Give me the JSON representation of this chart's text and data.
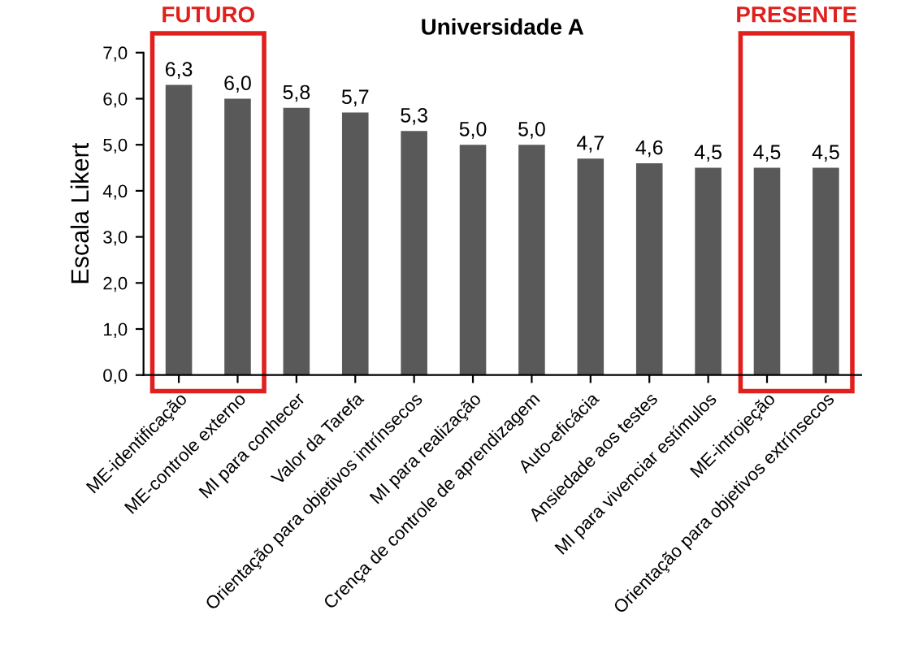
{
  "chart_data": {
    "type": "bar",
    "title": "Universidade A",
    "ylabel": "Escala Likert",
    "categories": [
      "ME-identificação",
      "ME-controle externo",
      "MI para conhecer",
      "Valor da Tarefa",
      "Orientação para objetivos intrínsecos",
      "MI para realização",
      "Crença de controle de aprendizagem",
      "Auto-eficácia",
      "Ansiedade aos testes",
      "MI para vivenciar estímulos",
      "ME-introjeção",
      "Orientação para objetivos extrínsecos"
    ],
    "values": [
      6.3,
      6.0,
      5.8,
      5.7,
      5.3,
      5.0,
      5.0,
      4.7,
      4.6,
      4.5,
      4.5,
      4.5
    ],
    "value_labels": [
      "6,3",
      "6,0",
      "5,8",
      "5,7",
      "5,3",
      "5,0",
      "5,0",
      "4,7",
      "4,6",
      "4,5",
      "4,5",
      "4,5"
    ],
    "color": "#595959",
    "ylim": [
      0,
      7
    ],
    "yticks": [
      {
        "value": 0,
        "label": "0,0"
      },
      {
        "value": 1,
        "label": "1,0"
      },
      {
        "value": 2,
        "label": "2,0"
      },
      {
        "value": 3,
        "label": "3,0"
      },
      {
        "value": 4,
        "label": "4,0"
      },
      {
        "value": 5,
        "label": "5,0"
      },
      {
        "value": 6,
        "label": "6,0"
      },
      {
        "value": 7,
        "label": "7,0"
      }
    ],
    "annotations": [
      "FUTURO",
      "PRESENTE"
    ],
    "grid": false,
    "legend": false
  }
}
